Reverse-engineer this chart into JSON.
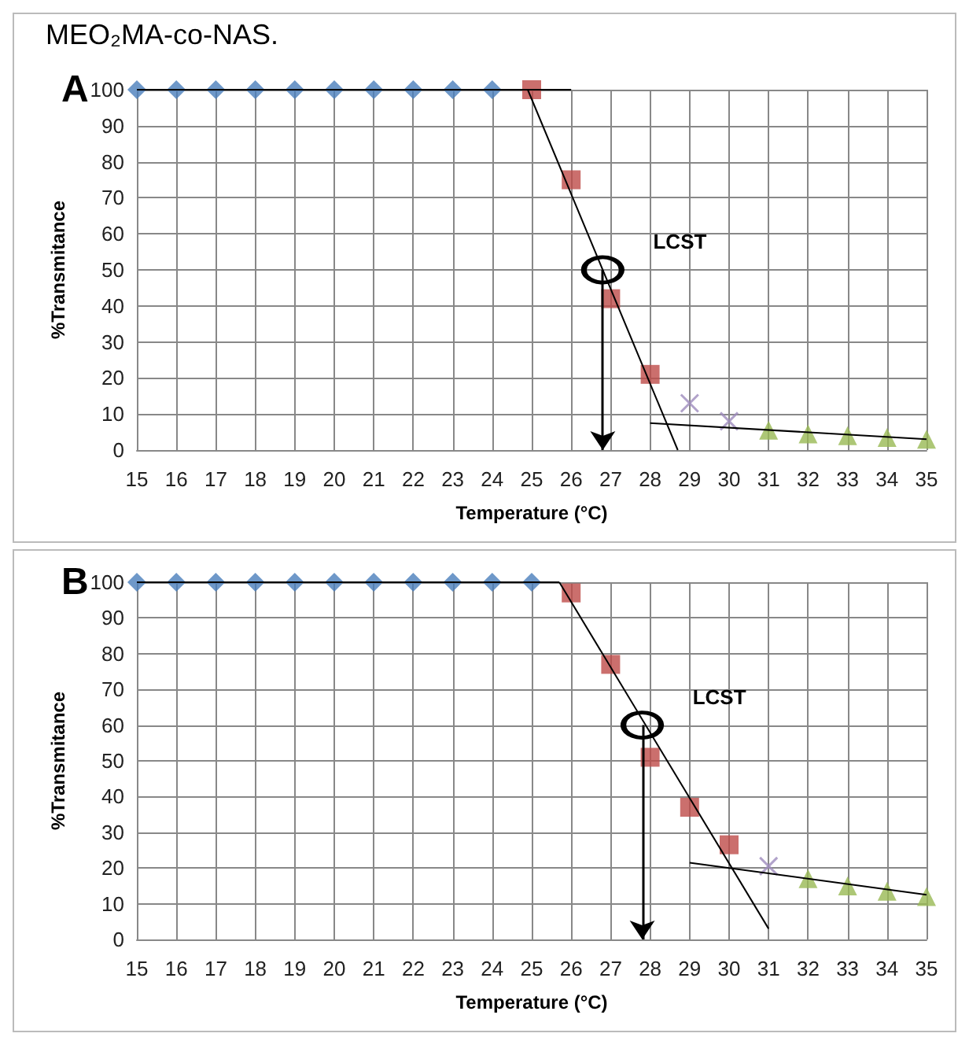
{
  "chart_data": [
    {
      "type": "scatter",
      "title": "A",
      "annotations": [
        "MEO₂MA-co-NAS.",
        {
          "text": "LCST",
          "x": 26.8,
          "y": 50
        }
      ],
      "xlabel": "Temperature (°C)",
      "ylabel": "%Transmitance",
      "xlim": [
        15,
        35
      ],
      "xticks": [
        15,
        16,
        17,
        18,
        19,
        20,
        21,
        22,
        23,
        24,
        25,
        26,
        27,
        28,
        29,
        30,
        31,
        32,
        33,
        34,
        35
      ],
      "ylim": [
        0,
        100
      ],
      "yticks": [
        0,
        10,
        20,
        30,
        40,
        50,
        60,
        70,
        80,
        90,
        100
      ],
      "grid": true,
      "series": [
        {
          "color": "#4a7ebb",
          "marker": "diamond",
          "x": [
            15,
            16,
            17,
            18,
            19,
            20,
            21,
            22,
            23,
            24
          ],
          "values": [
            100,
            100,
            100,
            100,
            100,
            100,
            100,
            100,
            100,
            100
          ]
        },
        {
          "color": "#be4b48",
          "marker": "square",
          "x": [
            25,
            26,
            27,
            28
          ],
          "values": [
            100,
            75,
            42,
            21
          ]
        },
        {
          "color": "#9d8bbd",
          "marker": "cross",
          "x": [
            29,
            30
          ],
          "values": [
            13,
            8
          ]
        },
        {
          "color": "#98b954",
          "marker": "triangle",
          "x": [
            31,
            32,
            33,
            34,
            35
          ],
          "values": [
            5.5,
            4.5,
            4,
            3.5,
            3
          ]
        },
        {
          "type": "line",
          "color": "#000000",
          "marker": "none",
          "x": [
            15,
            26
          ],
          "values": [
            100,
            100
          ]
        },
        {
          "type": "line",
          "color": "#000000",
          "marker": "none",
          "x": [
            24.9,
            28.7
          ],
          "values": [
            100,
            0
          ]
        },
        {
          "type": "line",
          "color": "#000000",
          "marker": "none",
          "x": [
            28,
            35
          ],
          "values": [
            7.5,
            3
          ]
        }
      ]
    },
    {
      "type": "scatter",
      "title": "B",
      "annotations": [
        {
          "text": "LCST",
          "x": 27.8,
          "y": 60
        }
      ],
      "xlabel": "Temperature (°C)",
      "ylabel": "%Transmitance",
      "xlim": [
        15,
        35
      ],
      "xticks": [
        15,
        16,
        17,
        18,
        19,
        20,
        21,
        22,
        23,
        24,
        25,
        26,
        27,
        28,
        29,
        30,
        31,
        32,
        33,
        34,
        35
      ],
      "ylim": [
        0,
        100
      ],
      "yticks": [
        0,
        10,
        20,
        30,
        40,
        50,
        60,
        70,
        80,
        90,
        100
      ],
      "grid": true,
      "series": [
        {
          "color": "#4a7ebb",
          "marker": "diamond",
          "x": [
            15,
            16,
            17,
            18,
            19,
            20,
            21,
            22,
            23,
            24,
            25
          ],
          "values": [
            100,
            100,
            100,
            100,
            100,
            100,
            100,
            100,
            100,
            100,
            100
          ]
        },
        {
          "color": "#be4b48",
          "marker": "square",
          "x": [
            26,
            27,
            28,
            29,
            30
          ],
          "values": [
            97,
            77,
            51,
            37,
            26.5
          ]
        },
        {
          "color": "#9d8bbd",
          "marker": "cross",
          "x": [
            31
          ],
          "values": [
            20.5
          ]
        },
        {
          "color": "#98b954",
          "marker": "triangle",
          "x": [
            32,
            33,
            34,
            35
          ],
          "values": [
            17,
            15,
            13.5,
            12
          ]
        },
        {
          "type": "line",
          "color": "#000000",
          "marker": "none",
          "x": [
            15,
            25.7
          ],
          "values": [
            100,
            100
          ]
        },
        {
          "type": "line",
          "color": "#000000",
          "marker": "none",
          "x": [
            25.7,
            31
          ],
          "values": [
            100,
            3
          ]
        },
        {
          "type": "line",
          "color": "#000000",
          "marker": "none",
          "x": [
            29,
            35
          ],
          "values": [
            21.5,
            12.5
          ]
        }
      ]
    }
  ]
}
